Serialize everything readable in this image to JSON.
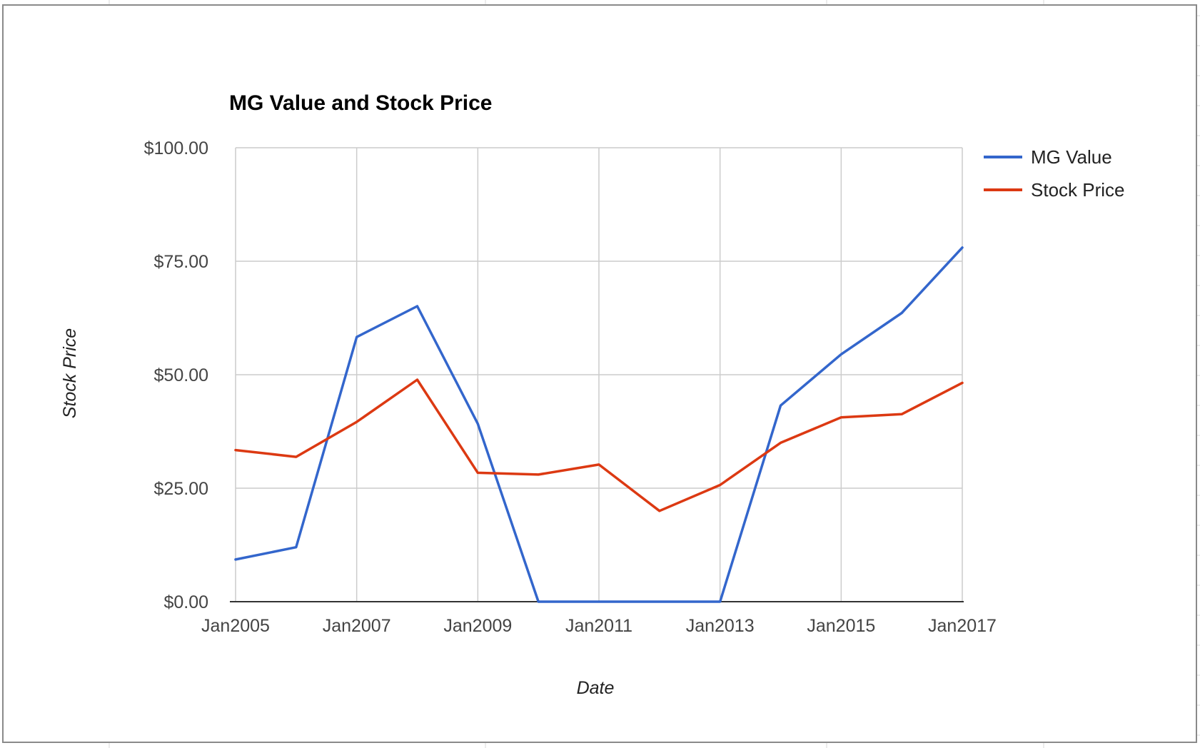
{
  "chart_data": {
    "type": "line",
    "title": "MG Value and Stock Price",
    "xlabel": "Date",
    "ylabel": "Stock Price",
    "x": [
      "2005-01",
      "2006-01",
      "2007-01",
      "2008-01",
      "2009-01",
      "2010-01",
      "2011-01",
      "2012-01",
      "2013-01",
      "2014-01",
      "2015-01",
      "2016-01",
      "2017-01"
    ],
    "x_ticks": [
      "Jan2005",
      "Jan2007",
      "Jan2009",
      "Jan2011",
      "Jan2013",
      "Jan2015",
      "Jan2017"
    ],
    "y_ticks": [
      "$0.00",
      "$25.00",
      "$50.00",
      "$75.00",
      "$100.00"
    ],
    "ylim": [
      0,
      100
    ],
    "grid": true,
    "legend_position": "right",
    "series": [
      {
        "name": "MG Value",
        "color": "#3366cc",
        "values": [
          9.3,
          12.0,
          58.3,
          65.1,
          39.2,
          0,
          0,
          0,
          0,
          43.2,
          54.5,
          63.6,
          78.0
        ]
      },
      {
        "name": "Stock Price",
        "color": "#dc3912",
        "values": [
          33.4,
          31.9,
          39.6,
          48.9,
          28.4,
          28.0,
          30.2,
          20.0,
          25.7,
          35.0,
          40.6,
          41.3,
          48.2
        ]
      }
    ]
  }
}
